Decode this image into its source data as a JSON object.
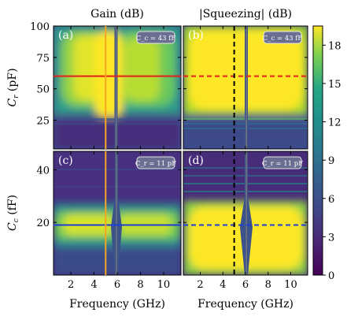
{
  "figure": {
    "col_titles": [
      "Gain (dB)",
      "|Squeezing| (dB)"
    ],
    "xlabel": "Frequency (GHz)",
    "ylabel_top": "C_r (pF)",
    "ylabel_bottom": "C_c (fF)"
  },
  "colorbar": {
    "ticks": [
      0,
      3,
      6,
      9,
      12,
      15,
      18
    ],
    "range": [
      0,
      19.5
    ],
    "colormap": "viridis"
  },
  "chart_data": [
    {
      "type": "heatmap",
      "panel": "(a)",
      "title": "Gain (dB)",
      "xlabel": "",
      "ylabel": "C_r (pF)",
      "xlim": [
        0.5,
        11.5
      ],
      "ylim": [
        2,
        100
      ],
      "xticks": [
        2,
        4,
        6,
        8,
        10
      ],
      "yticks": [
        25,
        50,
        75,
        100
      ],
      "annotation": "C_c = 43 fF",
      "resonance_GHz": 6,
      "hline": {
        "value": 60,
        "color": "#e3201b",
        "style": "solid"
      },
      "vline": {
        "value": 5,
        "color": "#f5a623",
        "style": "solid"
      }
    },
    {
      "type": "heatmap",
      "panel": "(b)",
      "title": "|Squeezing| (dB)",
      "xlabel": "",
      "ylabel": "",
      "xlim": [
        0.5,
        11.5
      ],
      "ylim": [
        2,
        100
      ],
      "xticks": [
        2,
        4,
        6,
        8,
        10
      ],
      "yticks": [
        25,
        50,
        75,
        100
      ],
      "annotation": "C_c = 43 fF",
      "resonance_GHz": 6,
      "hline": {
        "value": 60,
        "color": "#e3201b",
        "style": "dashed"
      },
      "vline": {
        "value": 5,
        "color": "#000000",
        "style": "dashed"
      }
    },
    {
      "type": "heatmap",
      "panel": "(c)",
      "xlabel": "Frequency (GHz)",
      "ylabel": "C_c (fF)",
      "xlim": [
        0.5,
        11.5
      ],
      "ylim": [
        0,
        47
      ],
      "xticks": [
        2,
        4,
        6,
        8,
        10
      ],
      "yticks": [
        20,
        40
      ],
      "annotation": "C_r = 11 pF",
      "resonance_GHz": 6,
      "hline": {
        "value": 19,
        "color": "#1f3fd1",
        "style": "solid"
      },
      "vline": {
        "value": 5,
        "color": "#f5a623",
        "style": "solid"
      }
    },
    {
      "type": "heatmap",
      "panel": "(d)",
      "xlabel": "Frequency (GHz)",
      "ylabel": "",
      "xlim": [
        0.5,
        11.5
      ],
      "ylim": [
        0,
        47
      ],
      "xticks": [
        2,
        4,
        6,
        8,
        10
      ],
      "yticks": [
        20,
        40
      ],
      "annotation": "C_r = 11 pF",
      "resonance_GHz": 6,
      "hline": {
        "value": 19,
        "color": "#1f3fd1",
        "style": "dashed"
      },
      "vline": {
        "value": 5,
        "color": "#000000",
        "style": "dashed"
      }
    }
  ]
}
